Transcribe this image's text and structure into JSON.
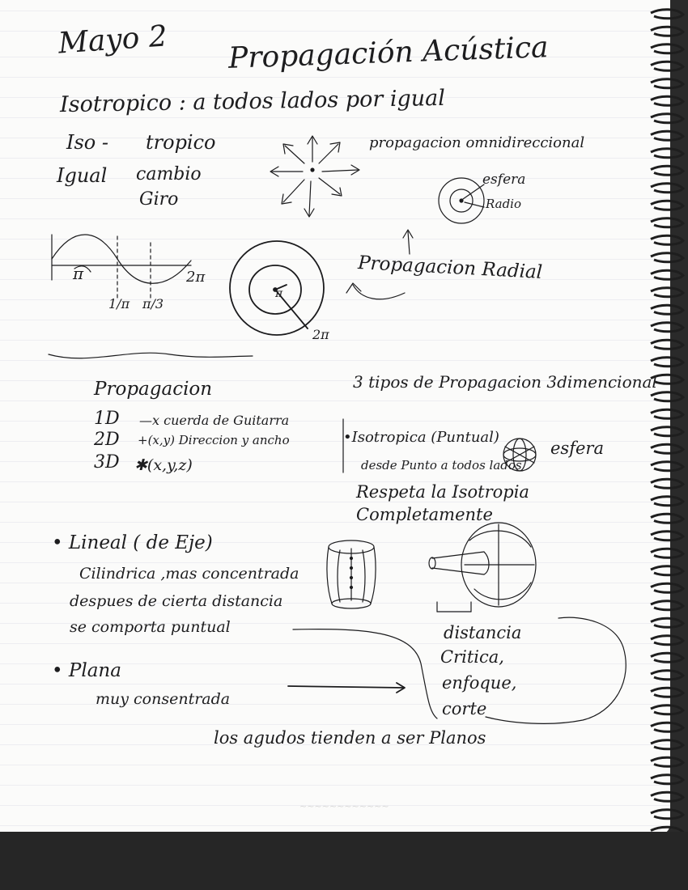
{
  "header": {
    "date": "Mayo 2",
    "title": "Propagación Acústica"
  },
  "isotropico": {
    "definition": "Isotropico : a todos lados por igual",
    "iso": "Iso -",
    "tropico": "tropico",
    "igual": "Igual",
    "cambio": "cambio",
    "giro": "Giro",
    "omni_label": "propagacion omnidireccional",
    "esfera": "esfera",
    "radio": "Radio"
  },
  "wave": {
    "two_pi": "2π",
    "pi_mark": "π",
    "frac_1_label": "1/π",
    "frac_2_label": "π/3",
    "circle_pi": "π",
    "circle_two_pi": "2π",
    "propagacion_radial": "Propagacion Radial"
  },
  "propagacion": {
    "heading": "Propagacion",
    "d1": "1D",
    "d1_desc": "—x cuerda de Guitarra",
    "d2": "2D",
    "d2_desc": "+(x,y) Direccion y ancho",
    "d3": "3D",
    "d3_desc": "✱(x,y,z)"
  },
  "tipos": {
    "heading": "3 tipos de Propagacion 3dimencional",
    "isotropica": "•Isotropica (Puntual)",
    "desde": "desde Punto a todos lados",
    "esfera": "esfera",
    "respeta": "Respeta la Isotropia",
    "completamente": "Completamente"
  },
  "lineal": {
    "heading": "• Lineal ( de Eje)",
    "line1": "Cilindrica ,mas concentrada",
    "line2": "despues de cierta distancia",
    "line3": "se comporta puntual"
  },
  "plana": {
    "heading": "• Plana",
    "desc": "muy consentrada"
  },
  "distancia": {
    "l1": "distancia",
    "l2": "Critica,",
    "l3": "enfoque,",
    "l4": "corte"
  },
  "footer_note": "los agudos tienden a ser Planos",
  "colors": {
    "paper": "#fbfbfa",
    "ink": "#1b1b1d",
    "rule": "#e8e8ee",
    "background": "#2a2a2a"
  }
}
